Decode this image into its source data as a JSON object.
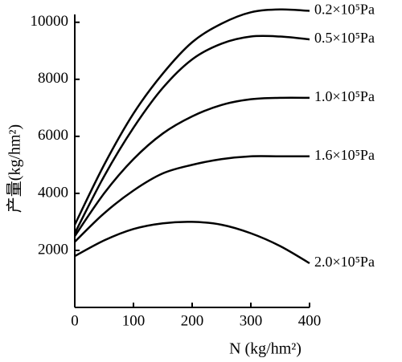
{
  "chart_data": {
    "type": "line",
    "x_label": "N (kg/hm²)",
    "y_label": "产量(kg/hm²)",
    "x": [
      0,
      50,
      100,
      150,
      200,
      250,
      300,
      350,
      400
    ],
    "series": [
      {
        "name": "0.2×10⁵Pa",
        "color": "#000000",
        "values": [
          2900,
          5000,
          6800,
          8200,
          9300,
          9950,
          10350,
          10450,
          10400
        ]
      },
      {
        "name": "0.5×10⁵Pa",
        "color": "#000000",
        "values": [
          2600,
          4600,
          6300,
          7700,
          8700,
          9250,
          9500,
          9500,
          9400
        ]
      },
      {
        "name": "1.0×10⁵Pa",
        "color": "#000000",
        "values": [
          2500,
          4000,
          5200,
          6100,
          6700,
          7100,
          7300,
          7350,
          7350
        ]
      },
      {
        "name": "1.6×10⁵Pa",
        "color": "#000000",
        "values": [
          2300,
          3300,
          4100,
          4700,
          5000,
          5200,
          5300,
          5300,
          5300
        ]
      },
      {
        "name": "2.0×10⁵Pa",
        "color": "#000000",
        "values": [
          1800,
          2350,
          2750,
          2950,
          3000,
          2900,
          2600,
          2150,
          1550
        ]
      }
    ],
    "xlim": [
      0,
      400
    ],
    "xticks": [
      0,
      100,
      200,
      300,
      400
    ],
    "ylim": [
      0,
      10500
    ],
    "yticks": [
      2000,
      4000,
      6000,
      8000,
      10000
    ]
  }
}
